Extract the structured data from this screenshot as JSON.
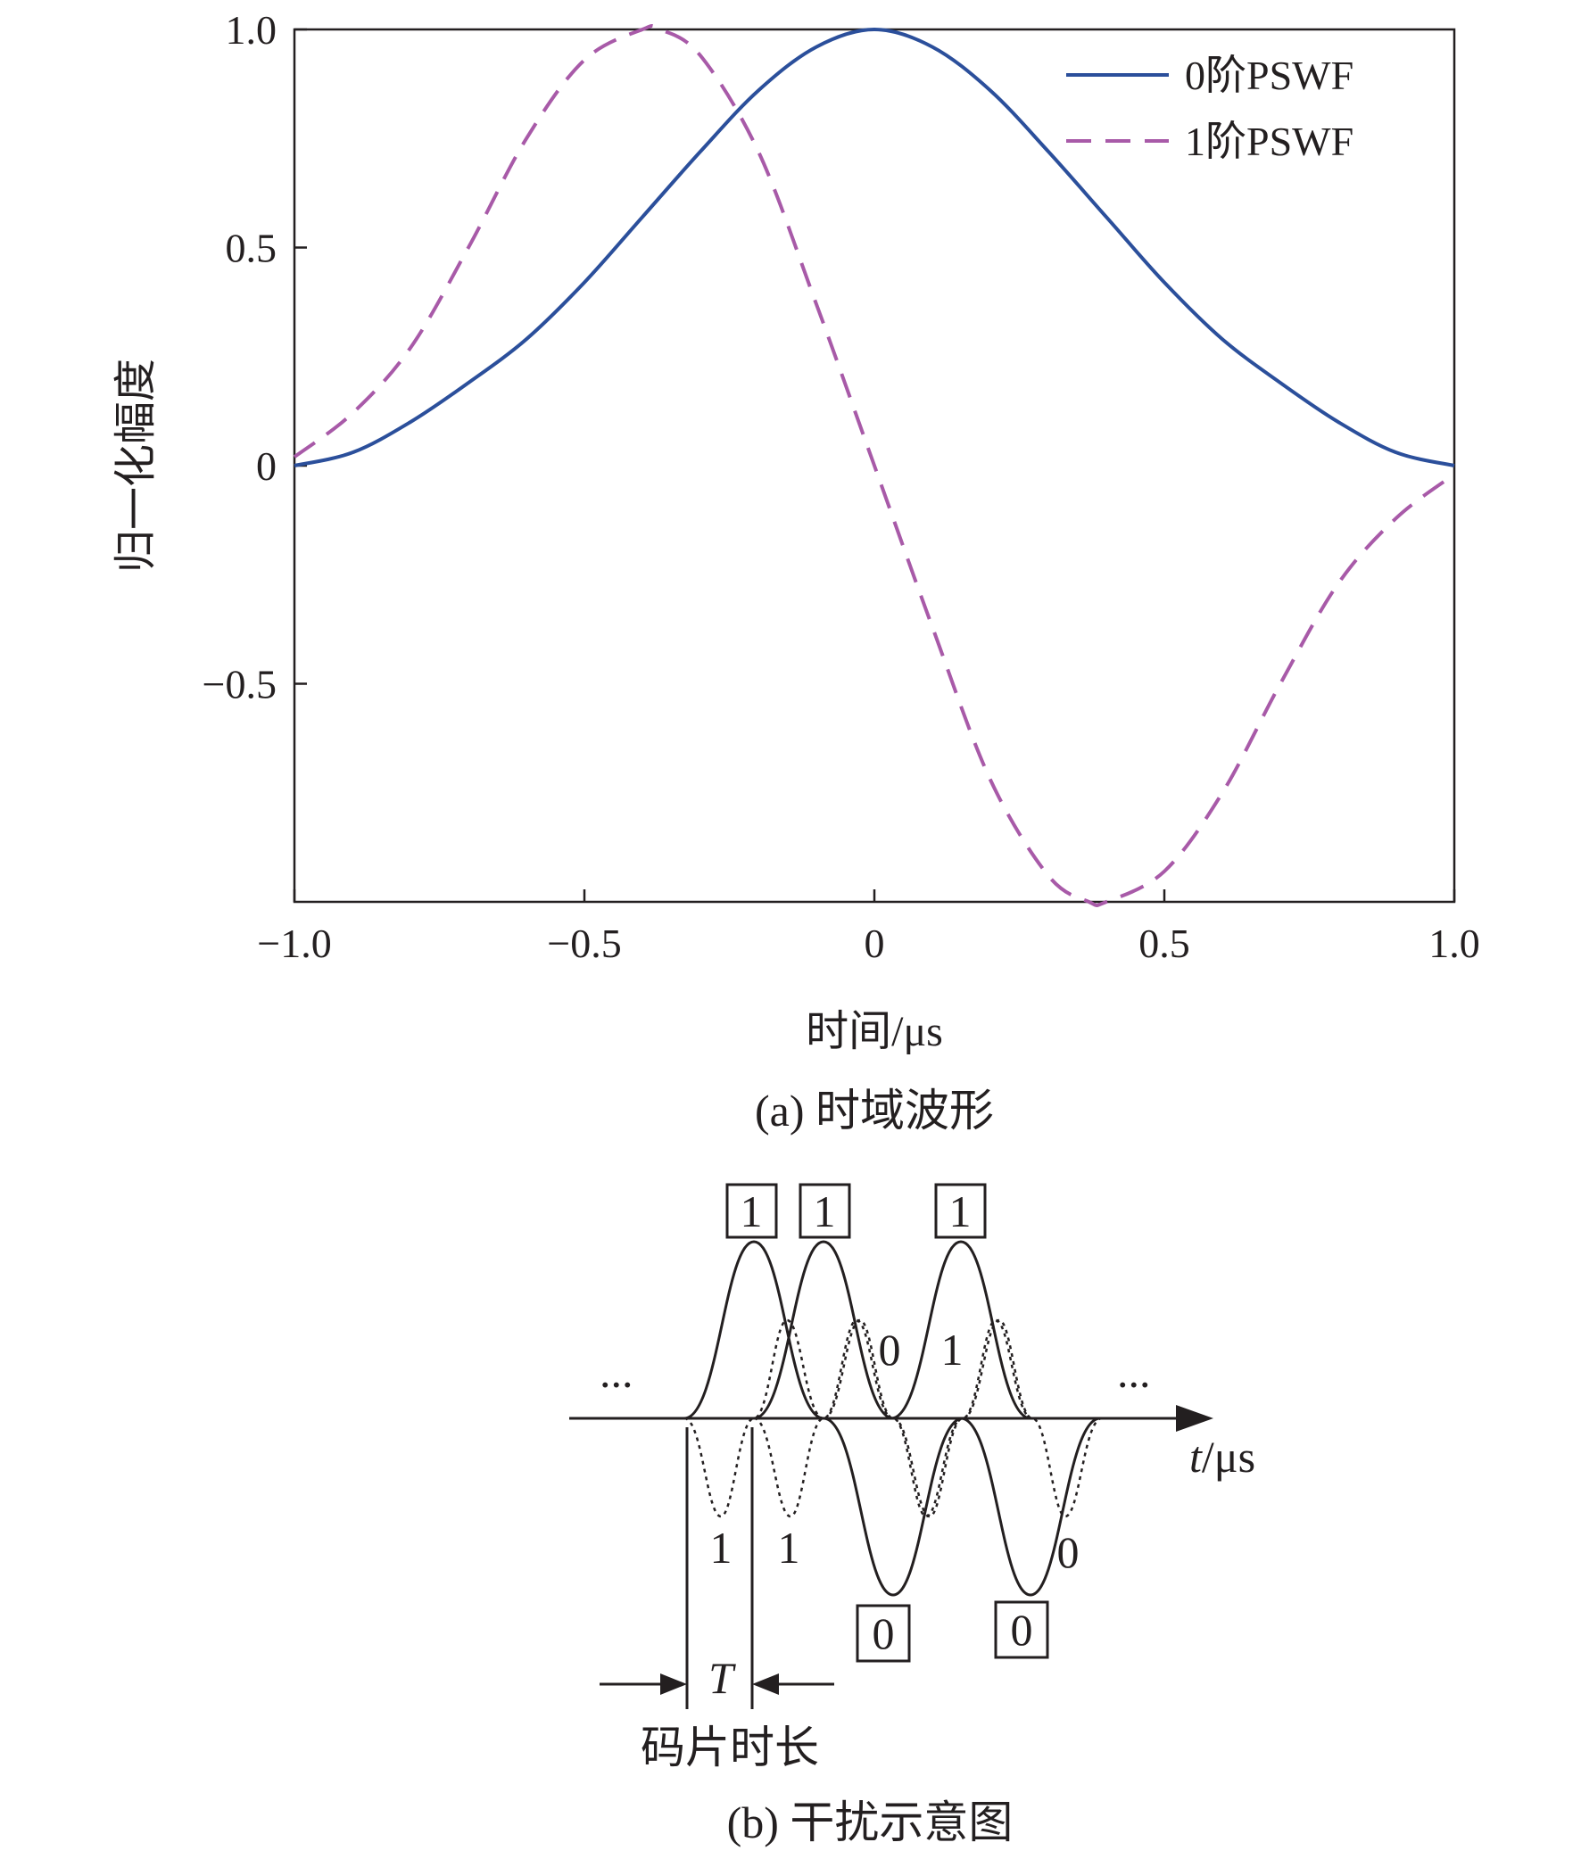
{
  "chart_data": [
    {
      "type": "line",
      "caption": "(a) 时域波形",
      "xlabel": "时间/μs",
      "ylabel": "归一化幅度",
      "xlim": [
        -1.0,
        1.0
      ],
      "ylim": [
        -1.0,
        1.0
      ],
      "x_ticks": [
        {
          "value": -1.0,
          "label": "−1.0"
        },
        {
          "value": -0.5,
          "label": "−0.5"
        },
        {
          "value": 0,
          "label": "0"
        },
        {
          "value": 0.5,
          "label": "0.5"
        },
        {
          "value": 1.0,
          "label": "1.0"
        }
      ],
      "y_ticks": [
        {
          "value": 1.0,
          "label": "1.0"
        },
        {
          "value": 0.5,
          "label": "0.5"
        },
        {
          "value": 0,
          "label": "0"
        },
        {
          "value": -0.5,
          "label": "−0.5"
        }
      ],
      "grid": false,
      "legend_position": "top-right",
      "series": [
        {
          "name": "0阶PSWF",
          "color": "#2b4f9b",
          "dash": "solid",
          "x": [
            -1.0,
            -0.9,
            -0.8,
            -0.7,
            -0.6,
            -0.5,
            -0.4,
            -0.3,
            -0.2,
            -0.1,
            0,
            0.1,
            0.2,
            0.3,
            0.4,
            0.5,
            0.6,
            0.7,
            0.8,
            0.9,
            1.0
          ],
          "y": [
            0.0,
            0.03,
            0.1,
            0.19,
            0.29,
            0.42,
            0.57,
            0.72,
            0.86,
            0.96,
            1.0,
            0.96,
            0.86,
            0.72,
            0.57,
            0.42,
            0.29,
            0.19,
            0.1,
            0.03,
            0.0
          ]
        },
        {
          "name": "1阶PSWF",
          "color": "#a85aa8",
          "dash": "dashed",
          "x": [
            -1.0,
            -0.9,
            -0.8,
            -0.7,
            -0.6,
            -0.5,
            -0.4,
            -0.37,
            -0.3,
            -0.2,
            -0.1,
            0,
            0.1,
            0.2,
            0.3,
            0.37,
            0.4,
            0.5,
            0.6,
            0.7,
            0.8,
            0.9,
            1.0
          ],
          "y": [
            0.02,
            0.12,
            0.27,
            0.5,
            0.75,
            0.93,
            1.0,
            1.0,
            0.94,
            0.72,
            0.37,
            0.0,
            -0.37,
            -0.72,
            -0.94,
            -1.0,
            -1.0,
            -0.93,
            -0.75,
            -0.5,
            -0.27,
            -0.12,
            -0.02
          ]
        }
      ]
    },
    {
      "type": "diagram",
      "caption": "(b) 干扰示意图",
      "axis_label_t": "t",
      "axis_label_unit": "/μs",
      "ellipsis_left": "...",
      "ellipsis_right": "...",
      "boxed_bits_top": [
        "1",
        "1",
        "1"
      ],
      "boxed_bits_bottom": [
        "0",
        "0"
      ],
      "dotted_bits_upper": [
        "0",
        "1"
      ],
      "dotted_bits_lower": [
        "1",
        "1",
        "0"
      ],
      "period_label": "T",
      "period_caption": "码片时长"
    }
  ]
}
